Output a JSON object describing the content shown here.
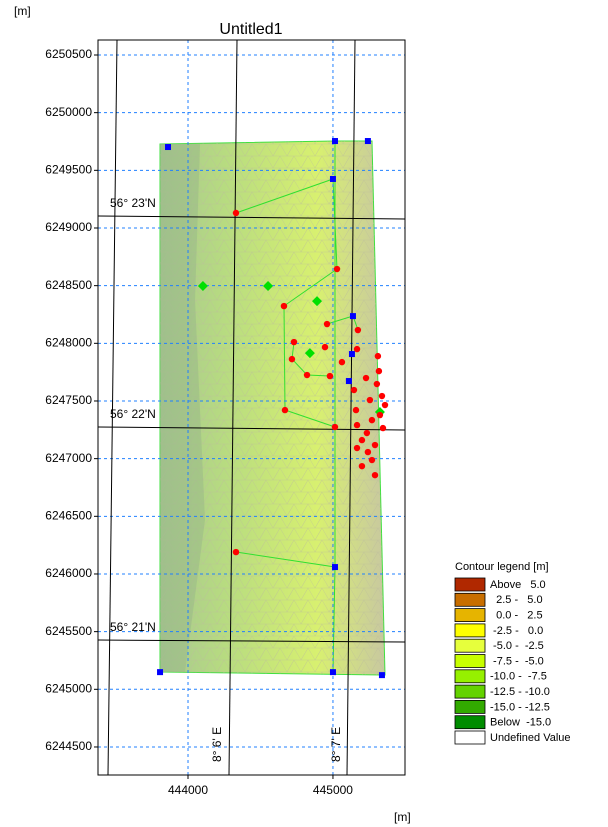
{
  "chart_data": {
    "type": "scatter",
    "title": "Untitled1",
    "y_axis_label": "[m]",
    "x_axis_label": "[m]",
    "xlim": [
      443379,
      445497
    ],
    "ylim": [
      6244257,
      6250630
    ],
    "xticks": [
      444000,
      445000
    ],
    "yticks": [
      6244500,
      6245000,
      6245500,
      6246000,
      6246500,
      6247000,
      6247500,
      6248000,
      6248500,
      6249000,
      6249500,
      6250000,
      6250500
    ],
    "grid": true,
    "graticule_labels": [
      "56° 23'N",
      "56° 22'N",
      "56° 21'N",
      "8° 6' E",
      "8° 7' E"
    ],
    "series": [
      {
        "marker": "square",
        "color": "#0000ff",
        "x": [
          443862,
          445014,
          445241,
          445000,
          445138,
          445131,
          445110,
          445014,
          443807,
          445000,
          445338
        ],
        "values": [
          6249702,
          6249754,
          6249754,
          6249425,
          6248236,
          6247907,
          6247673,
          6246060,
          6245149,
          6245149,
          6245123
        ]
      },
      {
        "marker": "diamond",
        "color": "#00e000",
        "x": [
          444103,
          444552,
          444890,
          444841,
          445324
        ],
        "values": [
          6248497,
          6248497,
          6248366,
          6247915,
          6247404
        ]
      },
      {
        "marker": "circle",
        "color": "#ff0000",
        "x": [
          444331,
          445028,
          444662,
          444959,
          445172,
          444731,
          444945,
          445166,
          444717,
          444821,
          444979,
          445062,
          444669,
          445014,
          445310,
          445317,
          445228,
          445303,
          445145,
          445338,
          445255,
          445359,
          445159,
          445324,
          445269,
          445166,
          445345,
          445234,
          445200,
          445290,
          445166,
          445241,
          445269,
          445200,
          445290,
          444331
        ],
        "values": [
          6249130,
          6248644,
          6248323,
          6248167,
          6248115,
          6248011,
          6247967,
          6247950,
          6247863,
          6247725,
          6247716,
          6247837,
          6247421,
          6247274,
          6247889,
          6247759,
          6247699,
          6247647,
          6247595,
          6247543,
          6247508,
          6247465,
          6247421,
          6247378,
          6247334,
          6247291,
          6247265,
          6247222,
          6247161,
          6247118,
          6247092,
          6247057,
          6246988,
          6246935,
          6246857,
          6246190
        ]
      }
    ],
    "legend": {
      "title": "Contour legend [m]",
      "entries": [
        {
          "label": "Above   5.0",
          "color": "#b02800"
        },
        {
          "label": "  2.5 -   5.0",
          "color": "#c86e00"
        },
        {
          "label": "  0.0 -   2.5",
          "color": "#e6b400"
        },
        {
          "label": " -2.5 -   0.0",
          "color": "#ffff00"
        },
        {
          "label": " -5.0 -  -2.5",
          "color": "#e6ff3c"
        },
        {
          "label": " -7.5 -  -5.0",
          "color": "#c8ff00"
        },
        {
          "label": "-10.0 -  -7.5",
          "color": "#96f000"
        },
        {
          "label": "-12.5 - -10.0",
          "color": "#64d200"
        },
        {
          "label": "-15.0 - -12.5",
          "color": "#32aa00"
        },
        {
          "label": "Below  -15.0",
          "color": "#008c00"
        },
        {
          "label": "Undefined Value",
          "color": "#ffffff"
        }
      ]
    }
  }
}
